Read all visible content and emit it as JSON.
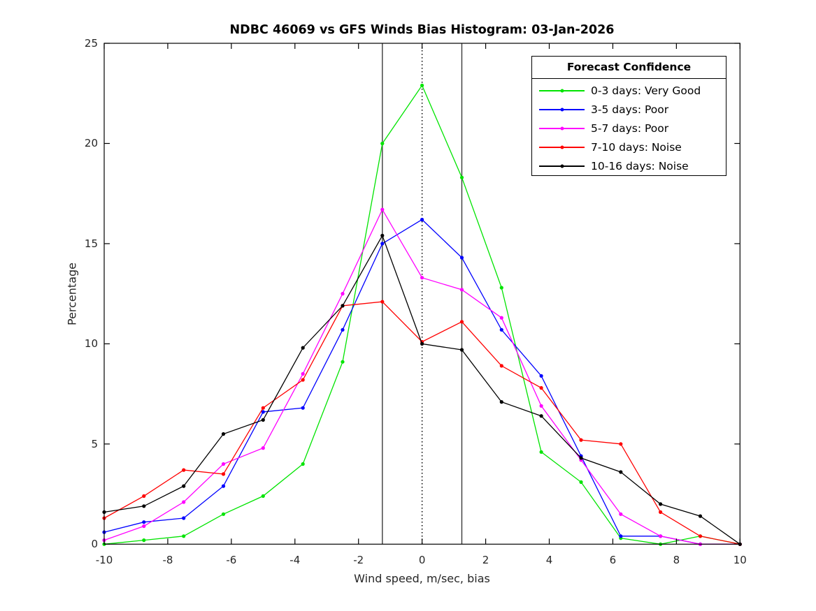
{
  "chart_data": {
    "type": "line",
    "title": "NDBC 46069 vs GFS Winds Bias Histogram: 03-Jan-2026",
    "xlabel": "Wind speed, m/sec, bias",
    "ylabel": "Percentage",
    "xlim": [
      -10,
      10
    ],
    "ylim": [
      0,
      25
    ],
    "xticks": [
      -10,
      -8,
      -6,
      -4,
      -2,
      0,
      2,
      4,
      6,
      8,
      10
    ],
    "yticks": [
      0,
      5,
      10,
      15,
      20,
      25
    ],
    "grid": false,
    "legend": {
      "title": "Forecast Confidence",
      "position": "top-right"
    },
    "reference_lines": [
      {
        "x": -1.25,
        "style": "solid",
        "color": "#3a3a3a"
      },
      {
        "x": 0,
        "style": "dotted",
        "color": "#000000"
      },
      {
        "x": 1.25,
        "style": "solid",
        "color": "#3a3a3a"
      }
    ],
    "x": [
      -10,
      -8.75,
      -7.5,
      -6.25,
      -5,
      -3.75,
      -2.5,
      -1.25,
      0,
      1.25,
      2.5,
      3.75,
      5,
      6.25,
      7.5,
      8.75,
      10
    ],
    "series": [
      {
        "label": "0-3 days: Very Good",
        "color": "#00e400",
        "values": [
          0,
          0.2,
          0.4,
          1.5,
          2.4,
          4.0,
          9.1,
          20.0,
          22.9,
          18.3,
          12.8,
          4.6,
          3.1,
          0.3,
          0,
          0.4,
          0
        ]
      },
      {
        "label": "3-5 days: Poor",
        "color": "#0000ff",
        "values": [
          0.6,
          1.1,
          1.3,
          2.9,
          6.6,
          6.8,
          10.7,
          15.0,
          16.2,
          14.3,
          10.7,
          8.4,
          4.4,
          0.4,
          0.4,
          0,
          0
        ]
      },
      {
        "label": "5-7 days: Poor",
        "color": "#ff00ff",
        "values": [
          0.2,
          0.9,
          2.1,
          4.0,
          4.8,
          8.5,
          12.5,
          16.7,
          13.3,
          12.7,
          11.3,
          6.9,
          4.2,
          1.5,
          0.4,
          0,
          0
        ]
      },
      {
        "label": "7-10 days: Noise",
        "color": "#ff0000",
        "values": [
          1.3,
          2.4,
          3.7,
          3.5,
          6.8,
          8.2,
          11.9,
          12.1,
          10.1,
          11.1,
          8.9,
          7.8,
          5.2,
          5.0,
          1.6,
          0.4,
          0
        ]
      },
      {
        "label": "10-16 days: Noise",
        "color": "#000000",
        "values": [
          1.6,
          1.9,
          2.9,
          5.5,
          6.2,
          9.8,
          11.9,
          15.4,
          10.0,
          9.7,
          7.1,
          6.4,
          4.3,
          3.6,
          2.0,
          1.4,
          0
        ]
      }
    ]
  }
}
